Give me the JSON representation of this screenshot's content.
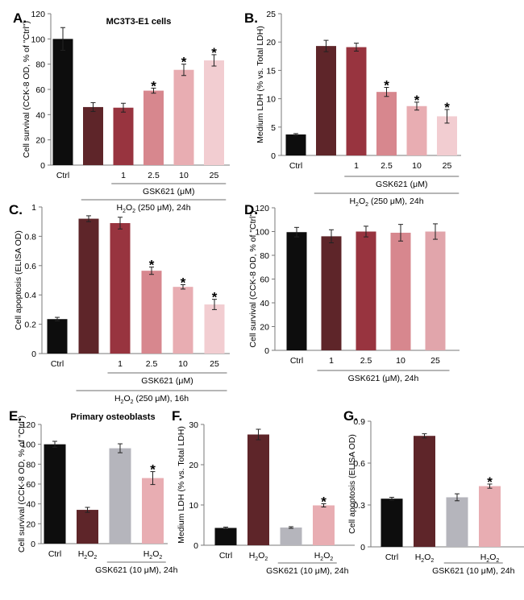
{
  "colors": {
    "black": "#0d0d0d",
    "maroon": "#5e2529",
    "red": "#98343f",
    "rose": "#d7878e",
    "pink": "#e8adb2",
    "lightpink": "#f2cdd1",
    "gray": "#b5b5bc",
    "medpink": "#e1a5ab"
  },
  "chart_data": [
    {
      "id": "A",
      "panel_label": "A.",
      "type": "bar",
      "title": "MC3T3-E1 cells",
      "ylabel": "Cell survival (CCK-8 OD, % of \"Ctrl\")",
      "ylim": [
        0,
        120
      ],
      "yticks": [
        0,
        20,
        40,
        60,
        80,
        100,
        120
      ],
      "categories": [
        "Ctrl",
        "",
        "1",
        "2.5",
        "10",
        "25"
      ],
      "values": [
        100,
        46,
        45.5,
        59,
        75.5,
        83
      ],
      "errors": [
        9,
        3.5,
        3.5,
        2,
        4.5,
        4.5
      ],
      "colors": [
        "black",
        "maroon",
        "red",
        "rose",
        "pink",
        "lightpink"
      ],
      "significant": [
        false,
        false,
        false,
        true,
        true,
        true
      ],
      "star": "*",
      "brackets": [
        {
          "label": "GSK621 (μM)",
          "from": 2,
          "to": 5
        },
        {
          "label_main": "H",
          "label_sub": "2",
          "label_mid": "O",
          "label_sub2": "2",
          "label_rest": " (250 μM), 24h",
          "from": 1,
          "to": 5
        }
      ]
    },
    {
      "id": "B",
      "panel_label": "B.",
      "type": "bar",
      "title": "",
      "ylabel": "Medium LDH (% vs. Total LDH)",
      "ylim": [
        0,
        25
      ],
      "yticks": [
        0,
        5,
        10,
        15,
        20,
        25
      ],
      "categories": [
        "Ctrl",
        "",
        "1",
        "2.5",
        "10",
        "25"
      ],
      "values": [
        3.7,
        19.3,
        19.1,
        11.2,
        8.7,
        6.9
      ],
      "errors": [
        0.15,
        1.0,
        0.7,
        0.8,
        0.7,
        1.2
      ],
      "colors": [
        "black",
        "maroon",
        "red",
        "rose",
        "pink",
        "lightpink"
      ],
      "significant": [
        false,
        false,
        false,
        true,
        true,
        true
      ],
      "star": "*",
      "brackets": [
        {
          "label": "GSK621 (μM)",
          "from": 2,
          "to": 5
        },
        {
          "label_main": "H",
          "label_sub": "2",
          "label_mid": "O",
          "label_sub2": "2",
          "label_rest": " (250 μM), 24h",
          "from": 1,
          "to": 5
        }
      ]
    },
    {
      "id": "C",
      "panel_label": "C.",
      "type": "bar",
      "title": "",
      "ylabel": "Cell apoptosis (ELISA OD)",
      "ylim": [
        0,
        1
      ],
      "yticks": [
        0,
        0.2,
        0.4,
        0.6,
        0.8,
        1
      ],
      "categories": [
        "Ctrl",
        "",
        "1",
        "2.5",
        "10",
        "25"
      ],
      "values": [
        0.235,
        0.92,
        0.89,
        0.565,
        0.455,
        0.335
      ],
      "errors": [
        0.012,
        0.02,
        0.04,
        0.025,
        0.015,
        0.035
      ],
      "colors": [
        "black",
        "maroon",
        "red",
        "rose",
        "pink",
        "lightpink"
      ],
      "significant": [
        false,
        false,
        false,
        true,
        true,
        true
      ],
      "star": "*",
      "brackets": [
        {
          "label": "GSK621 (μM)",
          "from": 2,
          "to": 5
        },
        {
          "label_main": "H",
          "label_sub": "2",
          "label_mid": "O",
          "label_sub2": "2",
          "label_rest": " (250 μM), 16h",
          "from": 1,
          "to": 5
        }
      ]
    },
    {
      "id": "D",
      "panel_label": "D.",
      "type": "bar",
      "title": "",
      "ylabel": "Cell survival (CCK-8 OD, % of \"Ctrl\")",
      "ylim": [
        0,
        120
      ],
      "yticks": [
        0,
        20,
        40,
        60,
        80,
        100,
        120
      ],
      "categories": [
        "Ctrl",
        "1",
        "2.5",
        "10",
        "25"
      ],
      "values": [
        99.5,
        96,
        100,
        99,
        100
      ],
      "errors": [
        4,
        5.5,
        4.5,
        7,
        6.5
      ],
      "colors": [
        "black",
        "maroon",
        "red",
        "rose",
        "medpink"
      ],
      "significant": [
        false,
        false,
        false,
        false,
        false
      ],
      "star": "*",
      "brackets": [
        {
          "label": "GSK621 (μM), 24h",
          "from": 1,
          "to": 4
        }
      ]
    },
    {
      "id": "E",
      "panel_label": "E.",
      "type": "bar",
      "title": "Primary osteoblasts",
      "ylabel": "Cell survival (CCK-8 OD, % of \"Ctrl\")",
      "ylim": [
        0,
        120
      ],
      "yticks": [
        0,
        20,
        40,
        60,
        80,
        100,
        120
      ],
      "categories": [
        "Ctrl",
        "H2O2",
        "",
        "H2O2"
      ],
      "values": [
        100,
        34,
        96,
        66
      ],
      "errors": [
        3,
        2.5,
        4.5,
        6.5
      ],
      "colors": [
        "black",
        "maroon",
        "gray",
        "pink"
      ],
      "significant": [
        false,
        false,
        false,
        true
      ],
      "star": "*",
      "brackets": [
        {
          "label": "GSK621 (10 μM), 24h",
          "from": 2,
          "to": 3
        }
      ]
    },
    {
      "id": "F",
      "panel_label": "F.",
      "type": "bar",
      "title": "",
      "ylabel": "Medium LDH (% vs. Total LDH)",
      "ylim": [
        0,
        30
      ],
      "yticks": [
        0,
        10,
        20,
        30
      ],
      "categories": [
        "Ctrl",
        "H2O2",
        "",
        "H2O2"
      ],
      "values": [
        4.3,
        27.5,
        4.4,
        9.9
      ],
      "errors": [
        0.2,
        1.3,
        0.2,
        0.4
      ],
      "colors": [
        "black",
        "maroon",
        "gray",
        "pink"
      ],
      "significant": [
        false,
        false,
        false,
        true
      ],
      "star": "*",
      "brackets": [
        {
          "label": "GSK621 (10 μM), 24h",
          "from": 2,
          "to": 3
        }
      ]
    },
    {
      "id": "G",
      "panel_label": "G.",
      "type": "bar",
      "title": "",
      "ylabel": "Cell apoptosis (ELISA OD)",
      "ylim": [
        0,
        0.9
      ],
      "yticks": [
        0,
        0.3,
        0.6,
        0.9
      ],
      "categories": [
        "Ctrl",
        "H2O2",
        "",
        "H2O2"
      ],
      "values": [
        0.345,
        0.795,
        0.355,
        0.435
      ],
      "errors": [
        0.01,
        0.015,
        0.025,
        0.015
      ],
      "colors": [
        "black",
        "maroon",
        "gray",
        "pink"
      ],
      "significant": [
        false,
        false,
        false,
        true
      ],
      "star": "*",
      "brackets": [
        {
          "label": "GSK621 (10 μM), 24h",
          "from": 2,
          "to": 3
        }
      ]
    }
  ]
}
